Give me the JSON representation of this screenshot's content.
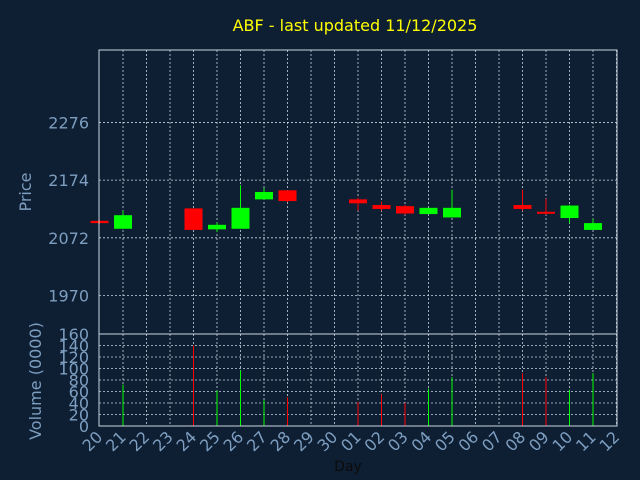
{
  "chart_data": [
    {
      "type": "candlestick",
      "title": "ABF - last updated 11/12/2025",
      "ylabel": "Price",
      "ylim": [
        1902,
        2404
      ],
      "yticks": [
        1970,
        2072,
        2174,
        2276
      ],
      "grid": true,
      "colors": {
        "up": "#00ff00",
        "down": "#ff0000",
        "background": "#0f1f33",
        "text": "#7d9ec0",
        "title": "#ffff00"
      },
      "candles": [
        {
          "day": "20",
          "open": 2102,
          "high": 2104,
          "low": 2096,
          "close": 2098
        },
        {
          "day": "21",
          "open": 2088,
          "high": 2120,
          "low": 2088,
          "close": 2112
        },
        {
          "day": "24",
          "open": 2124,
          "high": 2124,
          "low": 2086,
          "close": 2086
        },
        {
          "day": "25",
          "open": 2087,
          "high": 2099,
          "low": 2082,
          "close": 2095
        },
        {
          "day": "26",
          "open": 2088,
          "high": 2165,
          "low": 2088,
          "close": 2125
        },
        {
          "day": "27",
          "open": 2140,
          "high": 2160,
          "low": 2140,
          "close": 2153
        },
        {
          "day": "28",
          "open": 2156,
          "high": 2156,
          "low": 2135,
          "close": 2137
        },
        {
          "day": "01",
          "open": 2140,
          "high": 2143,
          "low": 2120,
          "close": 2133
        },
        {
          "day": "02",
          "open": 2130,
          "high": 2136,
          "low": 2120,
          "close": 2123
        },
        {
          "day": "03",
          "open": 2128,
          "high": 2130,
          "low": 2113,
          "close": 2115
        },
        {
          "day": "04",
          "open": 2114,
          "high": 2125,
          "low": 2114,
          "close": 2125
        },
        {
          "day": "05",
          "open": 2108,
          "high": 2157,
          "low": 2108,
          "close": 2125
        },
        {
          "day": "08",
          "open": 2130,
          "high": 2157,
          "low": 2120,
          "close": 2123
        },
        {
          "day": "09",
          "open": 2118,
          "high": 2141,
          "low": 2113,
          "close": 2116
        },
        {
          "day": "10",
          "open": 2107,
          "high": 2130,
          "low": 2098,
          "close": 2129
        },
        {
          "day": "11",
          "open": 2086,
          "high": 2106,
          "low": 2086,
          "close": 2098
        }
      ]
    },
    {
      "type": "bar",
      "ylabel": "Volume (0000)",
      "xlabel": "Day",
      "ylim": [
        0,
        160
      ],
      "yticks": [
        0,
        20,
        40,
        60,
        80,
        100,
        120,
        140,
        160
      ],
      "grid": true,
      "categories": [
        "20",
        "21",
        "22",
        "23",
        "24",
        "25",
        "26",
        "27",
        "28",
        "29",
        "30",
        "01",
        "02",
        "03",
        "04",
        "05",
        "06",
        "07",
        "08",
        "09",
        "10",
        "11",
        "12"
      ],
      "bars": [
        {
          "day": "21",
          "value": 72,
          "color": "#00ff00"
        },
        {
          "day": "24",
          "value": 140,
          "color": "#ff0000"
        },
        {
          "day": "25",
          "value": 62,
          "color": "#00ff00"
        },
        {
          "day": "26",
          "value": 97,
          "color": "#00ff00"
        },
        {
          "day": "27",
          "value": 45,
          "color": "#00ff00"
        },
        {
          "day": "28",
          "value": 50,
          "color": "#ff0000"
        },
        {
          "day": "01",
          "value": 42,
          "color": "#ff0000"
        },
        {
          "day": "02",
          "value": 55,
          "color": "#ff0000"
        },
        {
          "day": "03",
          "value": 40,
          "color": "#ff0000"
        },
        {
          "day": "04",
          "value": 65,
          "color": "#00ff00"
        },
        {
          "day": "05",
          "value": 85,
          "color": "#00ff00"
        },
        {
          "day": "08",
          "value": 92,
          "color": "#ff0000"
        },
        {
          "day": "09",
          "value": 85,
          "color": "#ff0000"
        },
        {
          "day": "10",
          "value": 63,
          "color": "#00ff00"
        },
        {
          "day": "11",
          "value": 92,
          "color": "#00ff00"
        }
      ]
    }
  ]
}
